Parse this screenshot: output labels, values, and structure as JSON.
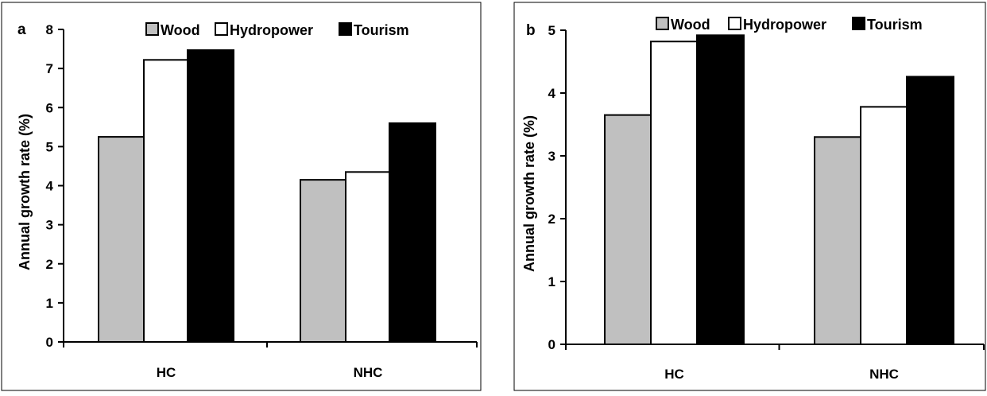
{
  "chart_data": [
    {
      "type": "bar",
      "panel_label": "a",
      "categories": [
        "HC",
        "NHC"
      ],
      "series": [
        {
          "name": "Wood",
          "color": "#c0c0c0",
          "values": [
            5.25,
            4.15
          ]
        },
        {
          "name": "Hydropower",
          "color": "#ffffff",
          "values": [
            7.22,
            4.35
          ]
        },
        {
          "name": "Tourism",
          "color": "#000000",
          "values": [
            7.47,
            5.6
          ]
        }
      ],
      "ylabel": "Annual  growth rate (%)",
      "xlabel": "",
      "ylim": [
        0,
        8
      ],
      "yticks": [
        "0",
        "1",
        "2",
        "3",
        "4",
        "5",
        "6",
        "7",
        "8"
      ],
      "legend_position": "top",
      "grid": false
    },
    {
      "type": "bar",
      "panel_label": "b",
      "categories": [
        "HC",
        "NHC"
      ],
      "series": [
        {
          "name": "Wood",
          "color": "#c0c0c0",
          "values": [
            3.65,
            3.3
          ]
        },
        {
          "name": "Hydropower",
          "color": "#ffffff",
          "values": [
            4.82,
            3.78
          ]
        },
        {
          "name": "Tourism",
          "color": "#000000",
          "values": [
            4.92,
            4.26
          ]
        }
      ],
      "ylabel": "Annual growth rate (%)",
      "xlabel": "",
      "ylim": [
        0,
        5
      ],
      "yticks": [
        "0",
        "1",
        "2",
        "3",
        "4",
        "5"
      ],
      "legend_position": "top",
      "grid": false
    }
  ]
}
